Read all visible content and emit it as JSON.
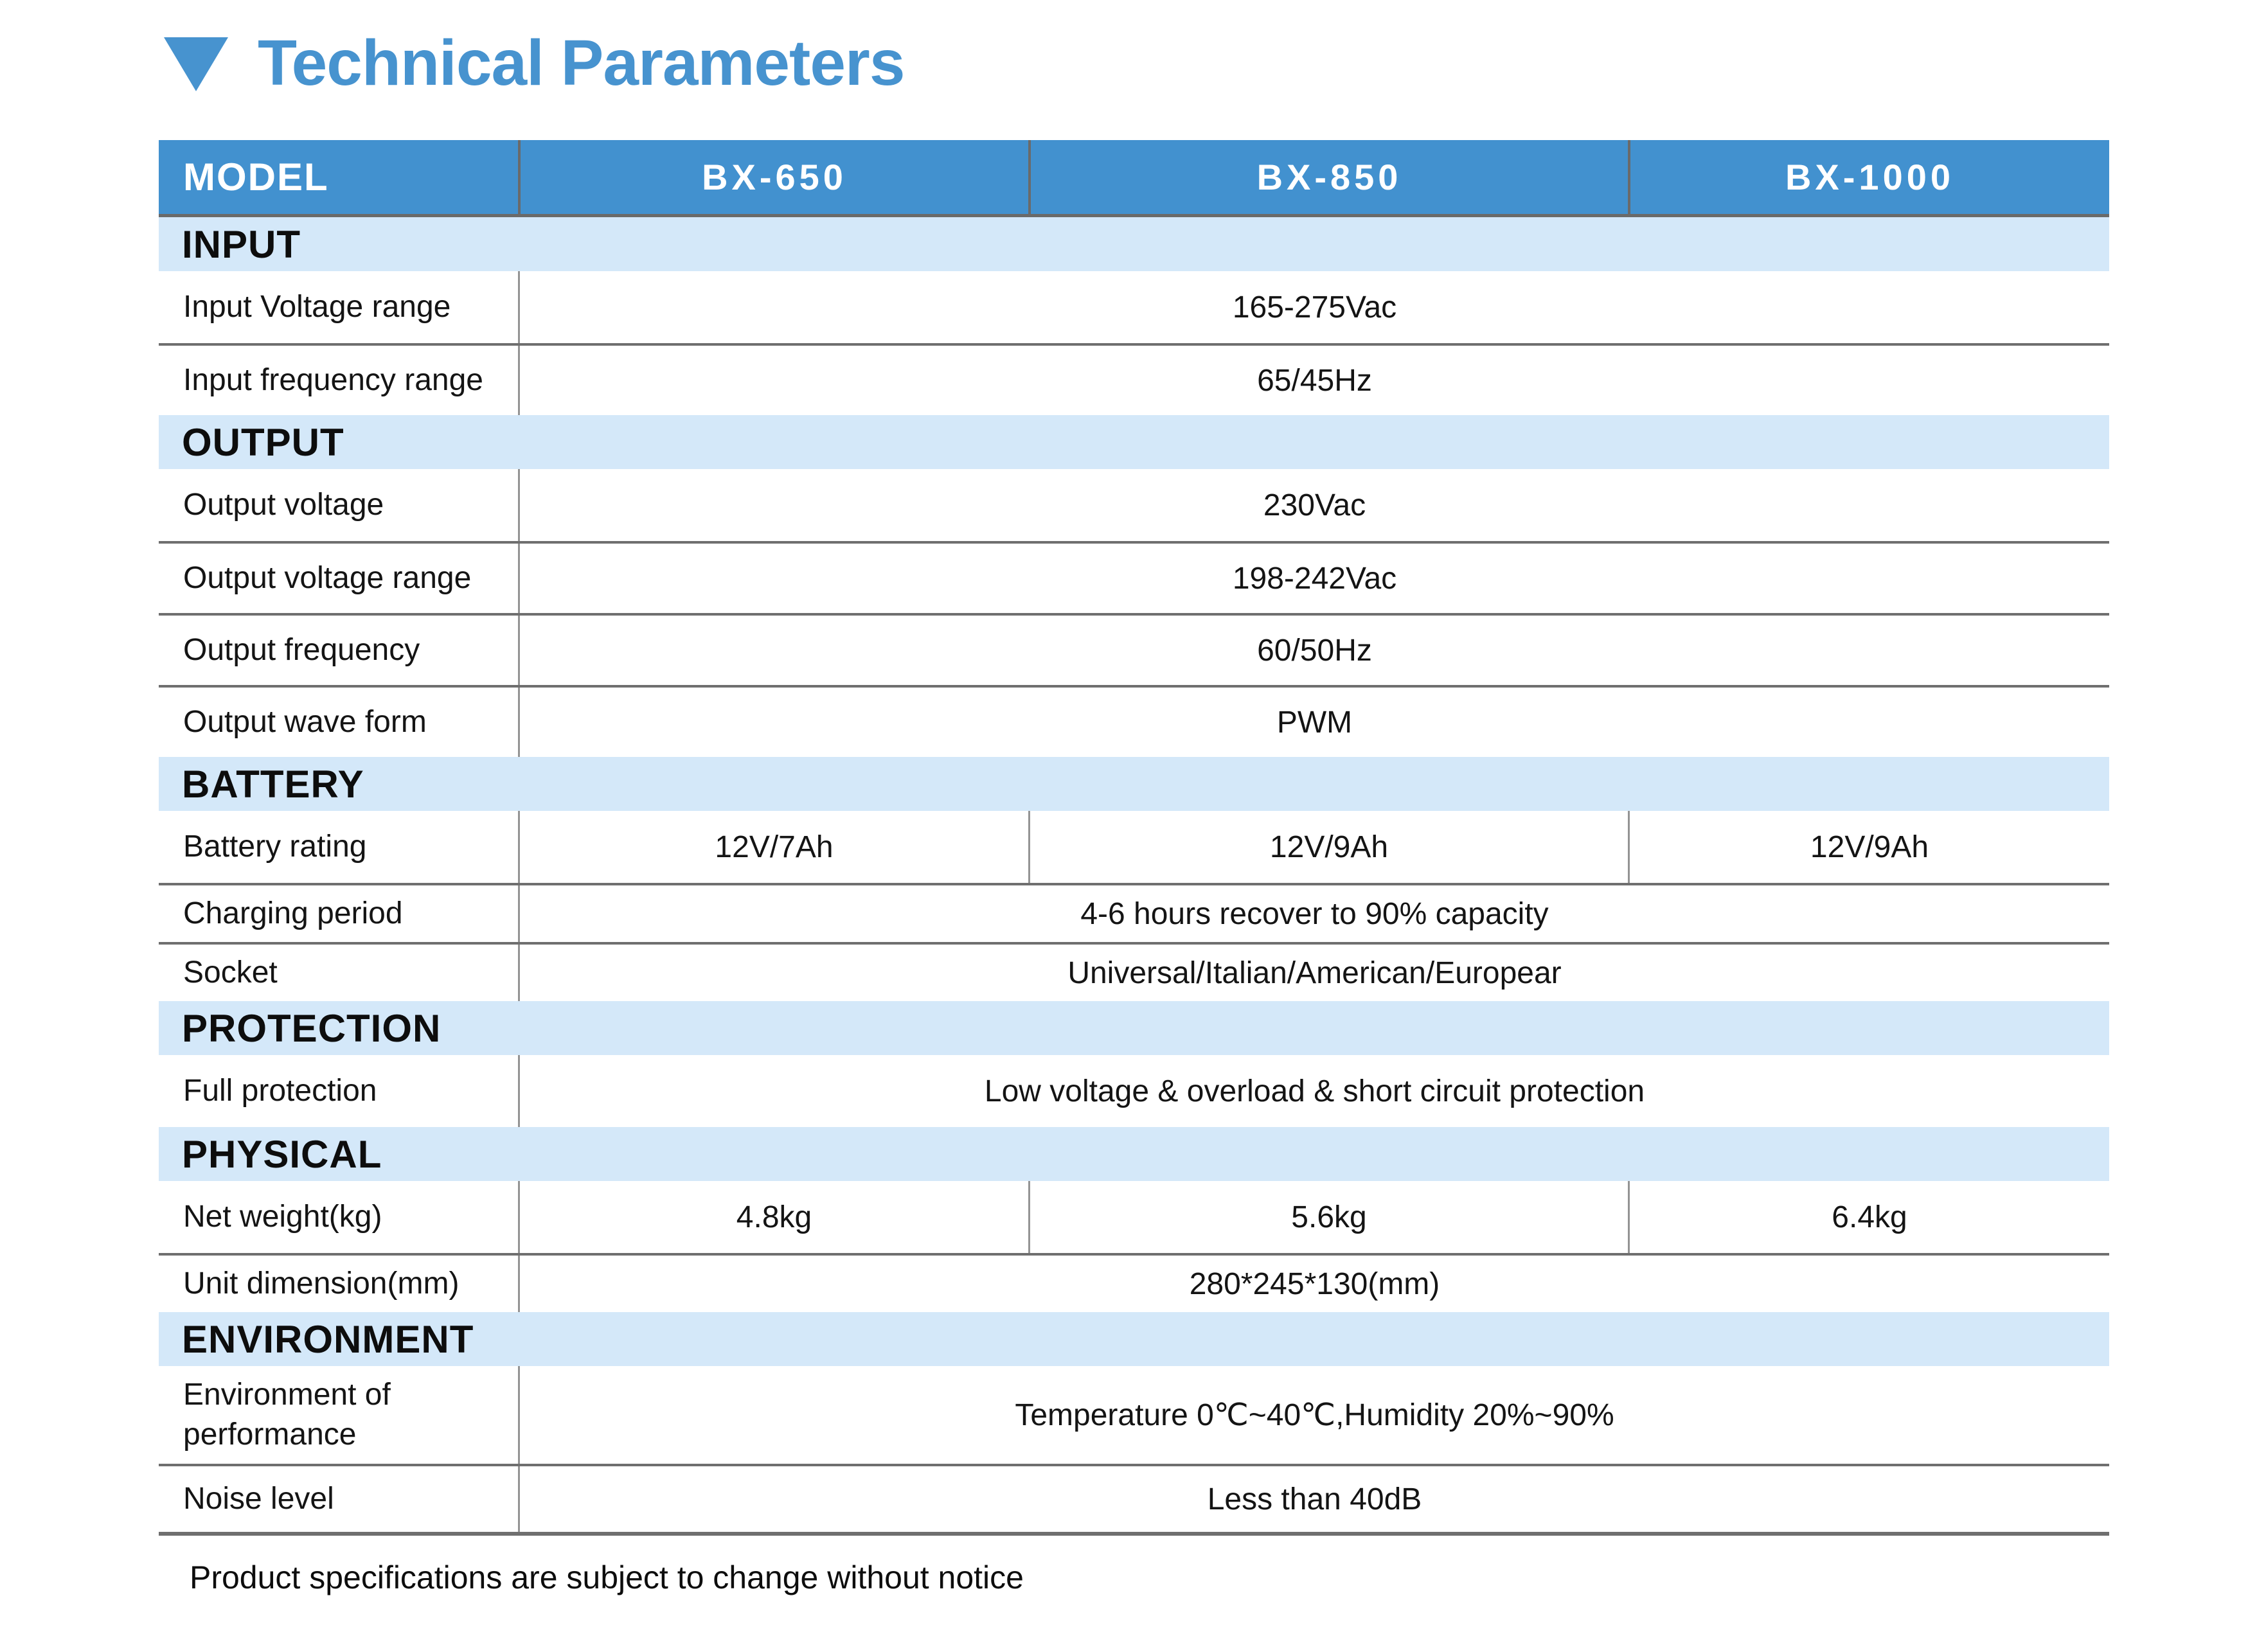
{
  "page": {
    "title": "Technical Parameters",
    "footer": "Product specifications are subject to change without notice",
    "icons": {
      "title_bullet": "triangle-down"
    },
    "colors": {
      "accent_blue": "#4793CF",
      "header_blue": "#4291CF",
      "band_light_blue": "#D4E8F9",
      "line_gray": "#6F6F6F",
      "divider_gray": "#949494",
      "header_text": "#FFFFFF",
      "body_text": "#141414"
    }
  },
  "table": {
    "header": {
      "label": "MODEL",
      "models": [
        "BX-650",
        "BX-850",
        "BX-1000"
      ]
    },
    "sections": [
      {
        "name": "INPUT",
        "rows": [
          {
            "label": "Input Voltage range",
            "value": "165-275Vac"
          },
          {
            "label": "Input frequency range",
            "value": "65/45Hz"
          }
        ]
      },
      {
        "name": "OUTPUT",
        "rows": [
          {
            "label": "Output voltage",
            "value": "230Vac"
          },
          {
            "label": "Output voltage range",
            "value": "198-242Vac"
          },
          {
            "label": "Output frequency",
            "value": "60/50Hz"
          },
          {
            "label": "Output wave form",
            "value": "PWM"
          }
        ]
      },
      {
        "name": "BATTERY",
        "rows": [
          {
            "label": "Battery rating",
            "values": [
              "12V/7Ah",
              "12V/9Ah",
              "12V/9Ah"
            ]
          },
          {
            "label": "Charging period",
            "value": "4-6 hours recover to 90% capacity",
            "size": "compact"
          },
          {
            "label": "Socket",
            "value": "Universal/Italian/American/Europear",
            "size": "compact"
          }
        ]
      },
      {
        "name": "PROTECTION",
        "rows": [
          {
            "label": "Full protection",
            "value": "Low voltage & overload & short circuit protection"
          }
        ]
      },
      {
        "name": "PHYSICAL",
        "rows": [
          {
            "label": "Net weight(kg)",
            "values": [
              "4.8kg",
              "5.6kg",
              "6.4kg"
            ]
          },
          {
            "label": "Unit dimension(mm)",
            "value": "280*245*130(mm)",
            "size": "compact"
          }
        ]
      },
      {
        "name": "ENVIRONMENT",
        "rows": [
          {
            "label": "Environment of performance",
            "value": "Temperature 0℃~40℃,Humidity 20%~90%",
            "size": "tall"
          },
          {
            "label": "Noise level",
            "value": "Less than 40dB"
          }
        ]
      }
    ]
  }
}
